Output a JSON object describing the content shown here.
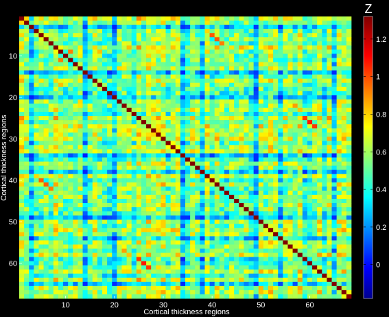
{
  "chart_data": {
    "type": "heatmap",
    "title": "",
    "xlabel": "Cortical thickness regions",
    "ylabel": "Cortical thickness regions",
    "n_regions": 68,
    "x_ticks": [
      10,
      20,
      30,
      40,
      50,
      60
    ],
    "y_ticks": [
      10,
      20,
      30,
      40,
      50,
      60
    ],
    "colorbar": {
      "title": "Z",
      "colormap": "jet",
      "range": [
        -0.18,
        1.32
      ],
      "ticks": [
        0,
        0.2,
        0.4,
        0.6,
        0.8,
        1,
        1.2
      ],
      "tick_labels": [
        "0",
        "0.2",
        "0.4",
        "0.6",
        "0.8",
        "1",
        "1.2"
      ]
    },
    "diagonal_value": 1.32,
    "typical_offdiagonal_range": [
      0.25,
      0.75
    ],
    "low_regions": [
      3,
      14,
      20,
      34,
      38,
      49,
      54,
      65
    ],
    "highlighted_pairs": [
      {
        "i": 40,
        "j": 5,
        "value": 1.0
      },
      {
        "i": 41,
        "j": 6,
        "value": 1.0
      },
      {
        "i": 42,
        "j": 7,
        "value": 0.95
      },
      {
        "i": 11,
        "j": 9,
        "value": 0.95
      },
      {
        "i": 59,
        "j": 25,
        "value": 1.05
      },
      {
        "i": 60,
        "j": 26,
        "value": 1.1
      },
      {
        "i": 61,
        "j": 27,
        "value": 1.05
      },
      {
        "i": 57,
        "j": 22,
        "value": 0.9
      },
      {
        "i": 17,
        "j": 9,
        "value": 0.85
      }
    ]
  }
}
